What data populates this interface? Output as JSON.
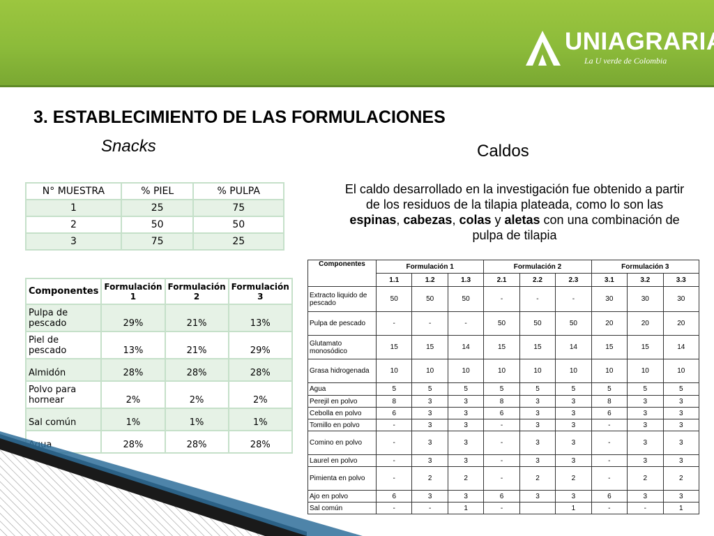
{
  "header": {
    "logo_text": "UNIAGRARIA",
    "logo_tagline": "La U verde de Colombia"
  },
  "title": "3. ESTABLECIMIENTO DE LAS FORMULACIONES",
  "snacks_label": "Snacks",
  "caldos_label": "Caldos",
  "caldos_description": {
    "part1": "El caldo desarrollado en la investigación fue obtenido a partir de los residuos de la tilapia plateada, como lo son las ",
    "espinas": "espinas",
    "sep1": ", ",
    "cabezas": "cabezas",
    "sep2": ", ",
    "colas": "colas",
    "sep3": " y ",
    "aletas": "aletas",
    "part2": " con una combinación de pulpa de tilapia"
  },
  "muestra_table": {
    "headers": [
      "N°  MUESTRA",
      "% PIEL",
      "% PULPA"
    ],
    "rows": [
      [
        "1",
        "25",
        "75"
      ],
      [
        "2",
        "50",
        "50"
      ],
      [
        "3",
        "75",
        "25"
      ]
    ]
  },
  "snacks_table": {
    "headers": [
      "Componentes",
      "Formulación 1",
      "Formulación 2",
      "Formulación 3"
    ],
    "rows": [
      [
        "Pulpa de pescado",
        "29%",
        "21%",
        "13%"
      ],
      [
        "Piel de pescado",
        "13%",
        "21%",
        "29%"
      ],
      [
        "Almidón",
        "28%",
        "28%",
        "28%"
      ],
      [
        "Polvo para hornear",
        "2%",
        "2%",
        "2%"
      ],
      [
        "Sal común",
        "1%",
        "1%",
        "1%"
      ],
      [
        "Agua",
        "28%",
        "28%",
        "28%"
      ]
    ]
  },
  "caldos_table": {
    "headers": [
      "Componentes",
      "Formulación 1",
      "Formulación 2",
      "Formulación 3"
    ],
    "subheaders": [
      "1.1",
      "1.2",
      "1.3",
      "2.1",
      "2.2",
      "2.3",
      "3.1",
      "3.2",
      "3.3"
    ],
    "rows": [
      {
        "name": "Extracto liquido de pescado",
        "values": [
          "50",
          "50",
          "50",
          "-",
          "-",
          "-",
          "30",
          "30",
          "30"
        ]
      },
      {
        "name": "Pulpa de pescado",
        "values": [
          "-",
          "-",
          "-",
          "50",
          "50",
          "50",
          "20",
          "20",
          "20"
        ]
      },
      {
        "name": "Glutamato monosódico",
        "values": [
          "15",
          "15",
          "14",
          "15",
          "15",
          "14",
          "15",
          "15",
          "14"
        ]
      },
      {
        "name": "Grasa hidrogenada",
        "values": [
          "10",
          "10",
          "10",
          "10",
          "10",
          "10",
          "10",
          "10",
          "10"
        ]
      },
      {
        "name": "Agua",
        "values": [
          "5",
          "5",
          "5",
          "5",
          "5",
          "5",
          "5",
          "5",
          "5"
        ]
      },
      {
        "name": "Perejil en polvo",
        "values": [
          "8",
          "3",
          "3",
          "8",
          "3",
          "3",
          "8",
          "3",
          "3"
        ]
      },
      {
        "name": "Cebolla en polvo",
        "values": [
          "6",
          "3",
          "3",
          "6",
          "3",
          "3",
          "6",
          "3",
          "3"
        ]
      },
      {
        "name": "Tomillo en polvo",
        "values": [
          "-",
          "3",
          "3",
          "-",
          "3",
          "3",
          "-",
          "3",
          "3"
        ]
      },
      {
        "name": "Comino en polvo",
        "values": [
          "-",
          "3",
          "3",
          "-",
          "3",
          "3",
          "-",
          "3",
          "3"
        ]
      },
      {
        "name": "Laurel en polvo",
        "values": [
          "-",
          "3",
          "3",
          "-",
          "3",
          "3",
          "-",
          "3",
          "3"
        ]
      },
      {
        "name": "Pimienta en polvo",
        "values": [
          "-",
          "2",
          "2",
          "-",
          "2",
          "2",
          "-",
          "2",
          "2"
        ]
      },
      {
        "name": "Ajo en polvo",
        "values": [
          "6",
          "3",
          "3",
          "6",
          "3",
          "3",
          "6",
          "3",
          "3"
        ]
      },
      {
        "name": "Sal común",
        "values": [
          "-",
          "-",
          "1",
          "-",
          "",
          "1",
          "-",
          "-",
          "1"
        ]
      }
    ]
  }
}
